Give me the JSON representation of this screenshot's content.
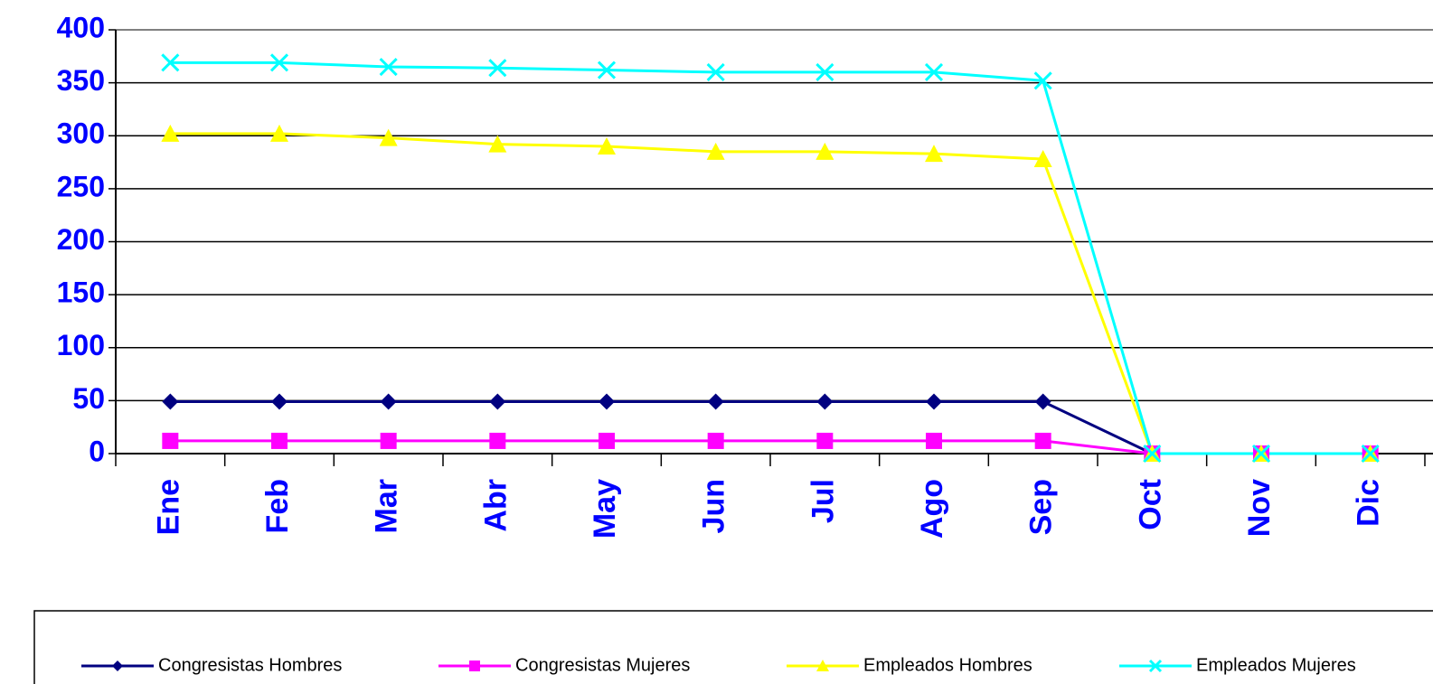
{
  "chart_data": {
    "type": "line",
    "categories": [
      "Ene",
      "Feb",
      "Mar",
      "Abr",
      "May",
      "Jun",
      "Jul",
      "Ago",
      "Sep",
      "Oct",
      "Nov",
      "Dic"
    ],
    "series": [
      {
        "name": "Congresistas Hombres",
        "color": "#000080",
        "marker": "diamond",
        "values": [
          49,
          49,
          49,
          49,
          49,
          49,
          49,
          49,
          49,
          0,
          0,
          0
        ]
      },
      {
        "name": "Congresistas Mujeres",
        "color": "#ff00ff",
        "marker": "square",
        "values": [
          12,
          12,
          12,
          12,
          12,
          12,
          12,
          12,
          12,
          0,
          0,
          0
        ]
      },
      {
        "name": "Empleados Hombres",
        "color": "#ffff00",
        "marker": "triangle",
        "values": [
          302,
          302,
          298,
          292,
          290,
          285,
          285,
          283,
          278,
          0,
          0,
          0
        ]
      },
      {
        "name": "Empleados Mujeres",
        "color": "#00ffff",
        "marker": "x",
        "values": [
          369,
          369,
          365,
          364,
          362,
          360,
          360,
          360,
          352,
          0,
          0,
          0
        ]
      }
    ],
    "ylim": [
      0,
      400
    ],
    "yticks": [
      0,
      50,
      100,
      150,
      200,
      250,
      300,
      350,
      400
    ],
    "grid": true,
    "legend": "bottom"
  }
}
